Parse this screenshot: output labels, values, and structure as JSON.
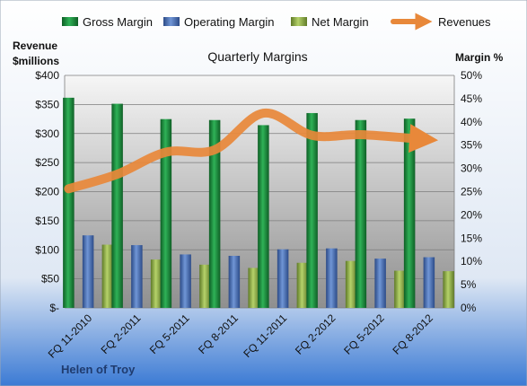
{
  "chart_data": {
    "type": "bar",
    "title": "Quarterly Margins",
    "company": "Helen of Troy",
    "ylabel_left_line1": "Revenue",
    "ylabel_left_line2": "$millions",
    "ylabel_right": "Margin %",
    "categories": [
      "FQ 11-2010",
      "FQ 2-2011",
      "FQ 5-2011",
      "FQ 8-2011",
      "FQ 11-2011",
      "FQ 2-2012",
      "FQ 5-2012",
      "FQ 8-2012"
    ],
    "y_left": {
      "min": 0,
      "max": 400,
      "step": 50,
      "tick_labels": [
        "$-",
        "$50",
        "$100",
        "$150",
        "$200",
        "$250",
        "$300",
        "$350",
        "$400"
      ]
    },
    "y_right": {
      "min": 0,
      "max": 50,
      "step": 5,
      "tick_labels": [
        "0%",
        "5%",
        "10%",
        "15%",
        "20%",
        "25%",
        "30%",
        "35%",
        "40%",
        "45%",
        "50%"
      ]
    },
    "legend_placement": "top",
    "gridlines": true,
    "series": [
      {
        "name": "Gross Margin",
        "axis": "right",
        "kind": "bar",
        "color": "#1f8a3c",
        "values": [
          45.2,
          43.9,
          40.6,
          40.4,
          39.3,
          41.9,
          40.4,
          40.7
        ]
      },
      {
        "name": "Operating Margin",
        "axis": "right",
        "kind": "bar",
        "color": "#4a6fb5",
        "values": [
          15.6,
          13.5,
          11.5,
          11.2,
          12.6,
          12.8,
          10.6,
          10.9
        ]
      },
      {
        "name": "Net Margin",
        "axis": "right",
        "kind": "bar",
        "color": "#8fb048",
        "values": [
          13.6,
          10.4,
          9.3,
          8.6,
          9.7,
          10.1,
          8.0,
          7.9
        ]
      },
      {
        "name": "Revenues",
        "axis": "left",
        "kind": "line",
        "color": "#e8883a",
        "values": [
          205,
          230,
          268,
          272,
          335,
          297,
          298,
          290
        ]
      }
    ]
  }
}
